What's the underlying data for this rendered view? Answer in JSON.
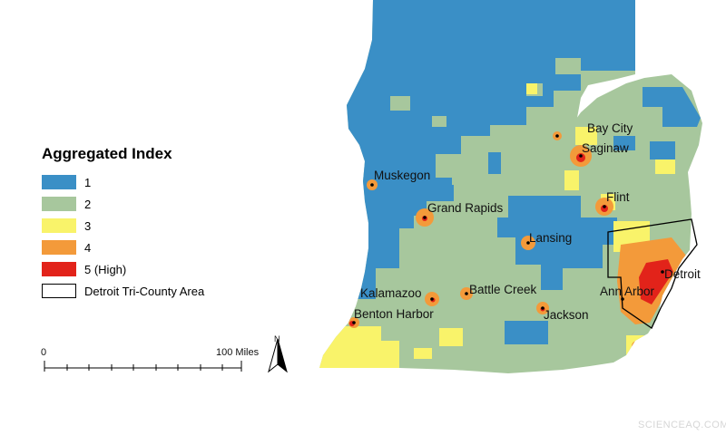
{
  "legend": {
    "title": "Aggregated Index",
    "items": [
      {
        "label": "1",
        "color": "#3a8fc6"
      },
      {
        "label": "2",
        "color": "#a7c79d"
      },
      {
        "label": "3",
        "color": "#f9f36a"
      },
      {
        "label": "4",
        "color": "#f39a3a"
      },
      {
        "label": "5 (High)",
        "color": "#e2231a"
      }
    ],
    "outline_item": {
      "label": "Detroit Tri-County Area",
      "color": "#000000"
    }
  },
  "cities": [
    "Bay City",
    "Saginaw",
    "Muskegon",
    "Grand Rapids",
    "Flint",
    "Lansing",
    "Detroit",
    "Ann Arbor",
    "Kalamazoo",
    "Battle Creek",
    "Jackson",
    "Benton Harbor"
  ],
  "scale_bar": {
    "start_label": "0",
    "end_label": "100 Miles"
  },
  "north_arrow": {
    "label": "N",
    "icon": "north-arrow-icon"
  },
  "watermark": "SCIENCEAQ.COM"
}
